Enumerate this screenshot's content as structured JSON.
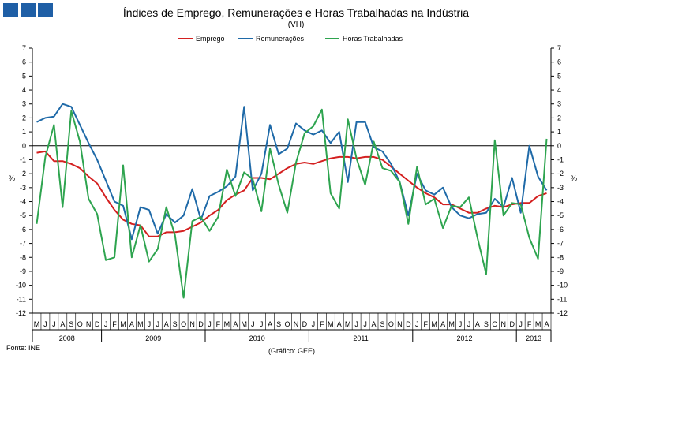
{
  "header": {
    "logo_colors": [
      "#1f5fa6",
      "#1f5fa6",
      "#1f5fa6"
    ],
    "logo_icon": "square-blocks-icon"
  },
  "chart_data": {
    "type": "line",
    "title": "Índices de Emprego, Remunerações e Horas Trabalhadas na Indústria",
    "subtitle": "(VH)",
    "ylabel": "%",
    "ylabel_right": "%",
    "ylim": [
      -12,
      7
    ],
    "yticks": [
      -12,
      -11,
      -10,
      -9,
      -8,
      -7,
      -6,
      -5,
      -4,
      -3,
      -2,
      -1,
      0,
      1,
      2,
      3,
      4,
      5,
      6,
      7
    ],
    "grid": false,
    "legend_position": "top-center",
    "months": [
      "M",
      "J",
      "J",
      "A",
      "S",
      "O",
      "N",
      "D",
      "J",
      "F",
      "M",
      "A",
      "M",
      "J",
      "J",
      "A",
      "S",
      "O",
      "N",
      "D",
      "J",
      "F",
      "M",
      "A",
      "M",
      "J",
      "J",
      "A",
      "S",
      "O",
      "N",
      "D",
      "J",
      "F",
      "M",
      "A",
      "M",
      "J",
      "J",
      "A",
      "S",
      "O",
      "N",
      "D",
      "J",
      "F",
      "M",
      "A",
      "M",
      "J",
      "J",
      "A",
      "S",
      "O",
      "N",
      "D",
      "J",
      "F",
      "M",
      "A"
    ],
    "years": [
      {
        "label": "2008",
        "start": 0,
        "end": 8
      },
      {
        "label": "2009",
        "start": 8,
        "end": 20
      },
      {
        "label": "2010",
        "start": 20,
        "end": 32
      },
      {
        "label": "2011",
        "start": 32,
        "end": 44
      },
      {
        "label": "2012",
        "start": 44,
        "end": 56
      },
      {
        "label": "2013",
        "start": 56,
        "end": 60
      }
    ],
    "series": [
      {
        "name": "Emprego",
        "color": "#d42020",
        "values": [
          -0.5,
          -0.4,
          -1.1,
          -1.1,
          -1.3,
          -1.6,
          -2.2,
          -2.7,
          -3.7,
          -4.6,
          -5.3,
          -5.6,
          -5.7,
          -6.5,
          -6.5,
          -6.2,
          -6.2,
          -6.1,
          -5.8,
          -5.5,
          -5.0,
          -4.6,
          -3.9,
          -3.5,
          -3.2,
          -2.3,
          -2.3,
          -2.4,
          -2.0,
          -1.6,
          -1.3,
          -1.2,
          -1.3,
          -1.1,
          -0.9,
          -0.8,
          -0.8,
          -0.9,
          -0.8,
          -0.8,
          -1.0,
          -1.5,
          -2.0,
          -2.5,
          -3.0,
          -3.4,
          -3.7,
          -4.2,
          -4.2,
          -4.5,
          -4.8,
          -4.8,
          -4.5,
          -4.3,
          -4.4,
          -4.2,
          -4.1,
          -4.1,
          -3.6,
          -3.4
        ]
      },
      {
        "name": "Remunerações",
        "color": "#1f6aa8",
        "values": [
          1.7,
          2.0,
          2.1,
          3.0,
          2.8,
          1.5,
          0.2,
          -1.0,
          -2.5,
          -4.0,
          -4.3,
          -6.7,
          -4.4,
          -4.6,
          -6.3,
          -4.9,
          -5.5,
          -5.0,
          -3.1,
          -5.3,
          -3.6,
          -3.3,
          -2.9,
          -2.2,
          2.8,
          -3.2,
          -2.0,
          1.5,
          -0.6,
          -0.2,
          1.6,
          1.1,
          0.8,
          1.1,
          0.2,
          1.0,
          -2.6,
          1.7,
          1.7,
          -0.1,
          -0.4,
          -1.3,
          -2.6,
          -5.0,
          -2.0,
          -3.2,
          -3.5,
          -3.0,
          -4.4,
          -5.0,
          -5.2,
          -4.9,
          -4.8,
          -3.8,
          -4.4,
          -2.3,
          -4.8,
          0.0,
          -2.2,
          -3.2
        ]
      },
      {
        "name": "Horas Trabalhadas",
        "color": "#2ea44f",
        "values": [
          -5.6,
          -0.8,
          1.5,
          -4.4,
          2.5,
          0.3,
          -3.8,
          -4.9,
          -8.2,
          -8.0,
          -1.4,
          -8.0,
          -5.7,
          -8.3,
          -7.4,
          -4.4,
          -6.4,
          -10.9,
          -5.4,
          -5.1,
          -6.1,
          -5.1,
          -1.7,
          -3.6,
          -1.9,
          -2.4,
          -4.7,
          -0.2,
          -2.8,
          -4.8,
          -1.2,
          0.9,
          1.4,
          2.6,
          -3.4,
          -4.5,
          1.9,
          -0.9,
          -2.8,
          0.3,
          -1.6,
          -1.8,
          -2.6,
          -5.6,
          -1.5,
          -4.2,
          -3.8,
          -5.9,
          -4.3,
          -4.4,
          -3.7,
          -6.6,
          -9.2,
          0.4,
          -5.0,
          -4.1,
          -4.2,
          -6.6,
          -8.1,
          0.5
        ]
      }
    ]
  },
  "footer": {
    "source": "Fonte: INE",
    "credit": "(Gráfico: GEE)"
  }
}
